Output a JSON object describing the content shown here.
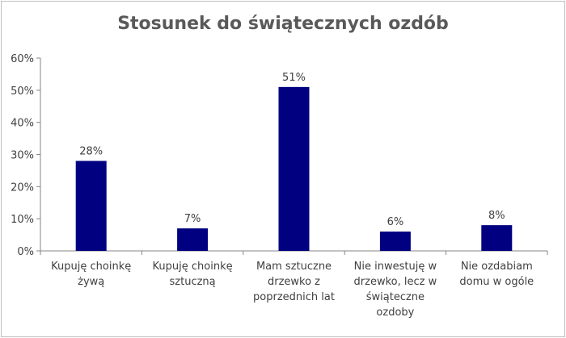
{
  "chart_data": {
    "type": "bar",
    "title": "Stosunek do świątecznych ozdób",
    "categories": [
      "Kupuję choinkę żywą",
      "Kupuję choinkę sztuczną",
      "Mam sztuczne drzewko z poprzednich lat",
      "Nie inwestuję w drzewko, lecz w świąteczne ozdoby",
      "Nie ozdabiam domu w ogóle"
    ],
    "category_lines": [
      [
        "Kupuję choinkę",
        "żywą"
      ],
      [
        "Kupuję choinkę",
        "sztuczną"
      ],
      [
        "Mam sztuczne",
        "drzewko z",
        "poprzednich lat"
      ],
      [
        "Nie inwestuję w",
        "drzewko, lecz w",
        "świąteczne",
        "ozdoby"
      ],
      [
        "Nie ozdabiam",
        "domu w ogóle"
      ]
    ],
    "values": [
      28,
      7,
      51,
      6,
      8
    ],
    "data_labels": [
      "28%",
      "7%",
      "51%",
      "6%",
      "8%"
    ],
    "ylim": [
      0,
      60
    ],
    "yticks": [
      0,
      10,
      20,
      30,
      40,
      50,
      60
    ],
    "ytick_labels": [
      "0%",
      "10%",
      "20%",
      "30%",
      "40%",
      "50%",
      "60%"
    ],
    "grid": false,
    "legend": "none",
    "bar_color": "#000080",
    "xlabel": "",
    "ylabel": ""
  }
}
